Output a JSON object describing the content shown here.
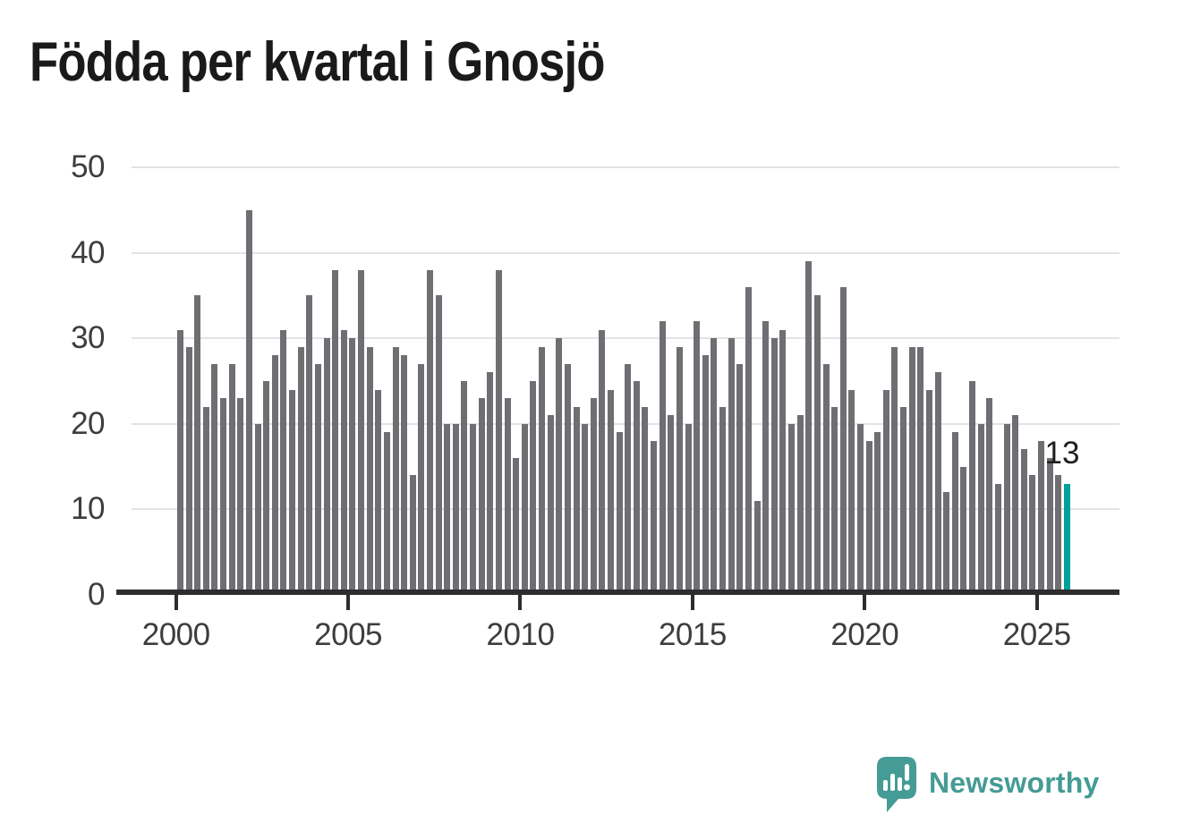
{
  "title": "Födda per kvartal i Gnosjö",
  "chart_data": {
    "type": "bar",
    "title": "Födda per kvartal i Gnosjö",
    "start_period": "2000-Q1",
    "end_period": "2025-Q4",
    "values": [
      31,
      29,
      35,
      22,
      27,
      23,
      27,
      23,
      45,
      20,
      25,
      28,
      31,
      24,
      29,
      35,
      27,
      30,
      38,
      31,
      30,
      38,
      29,
      24,
      19,
      29,
      28,
      14,
      27,
      38,
      35,
      20,
      20,
      25,
      20,
      23,
      26,
      38,
      23,
      16,
      20,
      25,
      29,
      21,
      30,
      27,
      22,
      20,
      23,
      31,
      24,
      19,
      27,
      25,
      22,
      18,
      32,
      21,
      29,
      20,
      32,
      28,
      30,
      22,
      30,
      27,
      36,
      11,
      32,
      30,
      31,
      20,
      21,
      39,
      35,
      27,
      22,
      36,
      24,
      20,
      18,
      19,
      24,
      29,
      22,
      29,
      29,
      24,
      26,
      12,
      19,
      15,
      25,
      20,
      23,
      13,
      20,
      21,
      17,
      14,
      18,
      16,
      14,
      13
    ],
    "x_tick_labels": [
      "2000",
      "2005",
      "2010",
      "2015",
      "2020",
      "2025"
    ],
    "y_tick_labels": [
      "0",
      "10",
      "20",
      "30",
      "40",
      "50"
    ],
    "ylim": [
      0,
      50
    ],
    "grid": "horizontal",
    "legend": "none",
    "highlight": {
      "period": "2025-Q4",
      "value": 13,
      "label": "13"
    },
    "bar_color": "#6e6e73",
    "highlight_color": "#00a09b"
  },
  "colors": {
    "background": "#ffffff",
    "title": "#1a1a1a",
    "axis_line": "#2d2d2d",
    "tick_label": "#3d3d3d",
    "gridline": "#e3e3e3",
    "annotation": "#1f1f1f",
    "brand_teal": "#459b95"
  },
  "branding": {
    "logo_text": "Newsworthy"
  }
}
